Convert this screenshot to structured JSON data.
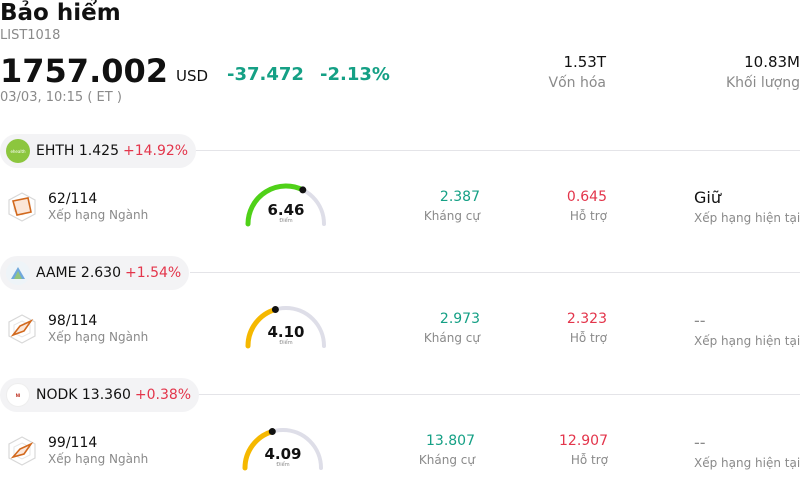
{
  "header": {
    "title": "Bảo hiểm",
    "code": "LIST1018",
    "price": "1757.002",
    "currency": "USD",
    "change": "-37.472",
    "change_pct": "-2.13%",
    "time": "03/03, 10:15  ( ET )"
  },
  "stats": {
    "market_cap_value": "1.53T",
    "market_cap_label": "Vốn hóa",
    "volume_value": "10.83M",
    "volume_label": "Khối lượng"
  },
  "stocks": [
    {
      "symbol_price": "EHTH 1.425",
      "change_pct": "+14.92%",
      "logo": "ehealth-logo",
      "rank": "62/114",
      "rank_label": "Xếp hạng Ngành",
      "score": "6.46",
      "score_caption": "Điểm",
      "score_fraction": 0.646,
      "resistance": "2.387",
      "resistance_label": "Kháng cự",
      "support": "0.645",
      "support_label": "Hỗ trợ",
      "rating": "Giữ",
      "rating_label": "Xếp hạng hiện tại",
      "color_gauge": "#4fd118"
    },
    {
      "symbol_price": "AAME 2.630",
      "change_pct": "+1.54%",
      "logo": "aame-logo",
      "rank": "98/114",
      "rank_label": "Xếp hạng Ngành",
      "score": "4.10",
      "score_caption": "Điểm",
      "score_fraction": 0.41,
      "resistance": "2.973",
      "resistance_label": "Kháng cự",
      "support": "2.323",
      "support_label": "Hỗ trợ",
      "rating": "--",
      "rating_label": "Xếp hạng hiện tại",
      "color_gauge": "#f5b800"
    },
    {
      "symbol_price": "NODK 13.360",
      "change_pct": "+0.38%",
      "logo": "nodk-logo",
      "rank": "99/114",
      "rank_label": "Xếp hạng Ngành",
      "score": "4.09",
      "score_caption": "Điểm",
      "score_fraction": 0.409,
      "resistance": "13.807",
      "resistance_label": "Kháng cự",
      "support": "12.907",
      "support_label": "Hỗ trợ",
      "rating": "--",
      "rating_label": "Xếp hạng hiện tại",
      "color_gauge": "#f5b800"
    }
  ]
}
